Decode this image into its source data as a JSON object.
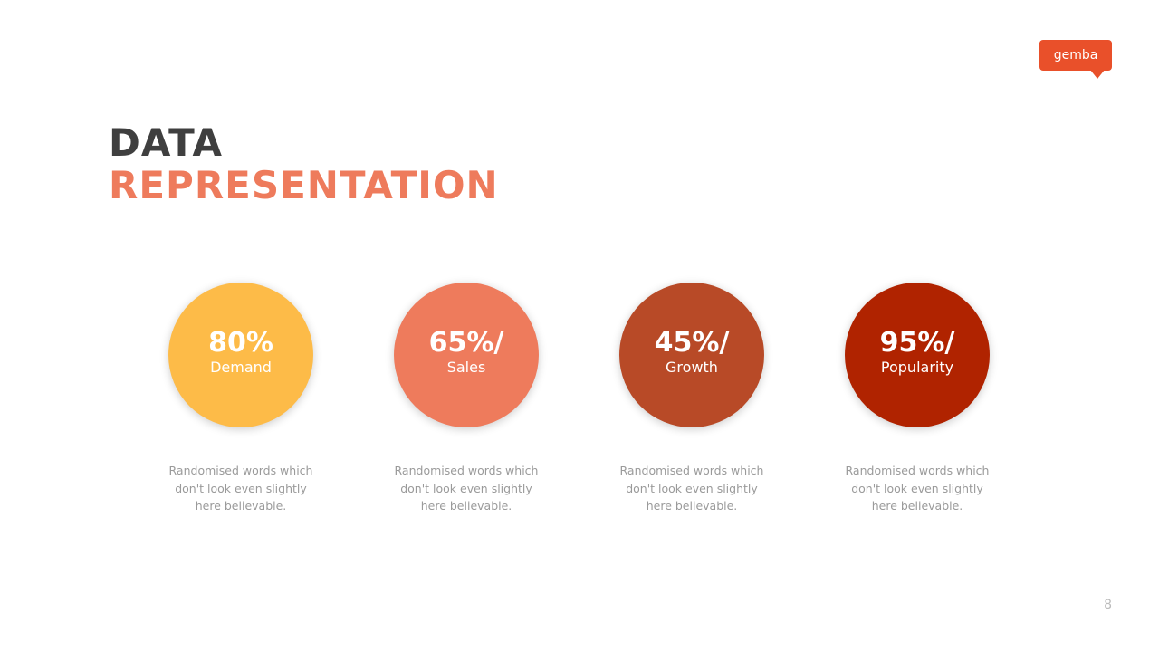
{
  "logo": {
    "text": "gemba",
    "color": "#E9502A"
  },
  "title": {
    "line1": "DATA",
    "line2": "REPRESENTATION",
    "accent": "#EE7B5C"
  },
  "items": [
    {
      "value": "80%",
      "label": "Demand",
      "color": "#FDBB48",
      "description": "Randomised words which don't look even slightly here believable."
    },
    {
      "value": "65%/",
      "label": "Sales",
      "color": "#EE7B5C",
      "description": "Randomised words which don't look even slightly here believable."
    },
    {
      "value": "45%/",
      "label": "Growth",
      "color": "#B84A27",
      "description": "Randomised words which don't look even slightly here believable."
    },
    {
      "value": "95%/",
      "label": "Popularity",
      "color": "#B02300",
      "description": "Randomised words which don't look even slightly here believable."
    }
  ],
  "page_number": "8"
}
